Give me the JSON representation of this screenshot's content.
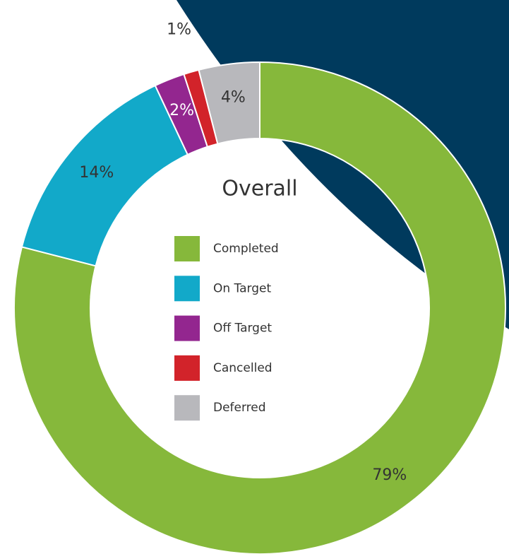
{
  "chart_data": {
    "type": "donut",
    "title": "Overall",
    "categories": [
      "Completed",
      "On Target",
      "Off Target",
      "Cancelled",
      "Deferred"
    ],
    "values": [
      79,
      14,
      2,
      1,
      4
    ],
    "value_labels": [
      "79%",
      "14%",
      "2%",
      "1%",
      "4%"
    ],
    "colors": [
      "#86b83b",
      "#12a9c9",
      "#93268f",
      "#d2232a",
      "#b8b8bc"
    ],
    "legend": "center"
  }
}
